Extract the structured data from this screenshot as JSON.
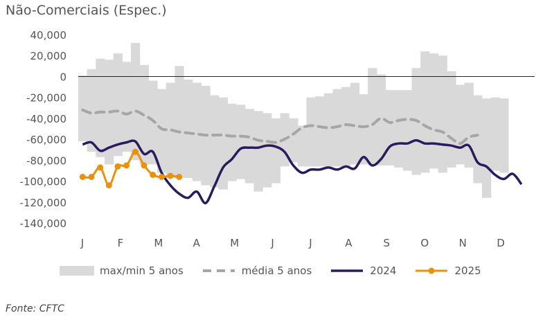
{
  "chart_data": {
    "type": "line",
    "title": "Não-Comerciais (Espec.)",
    "source": "Fonte: CFTC",
    "ylim": [
      -140000,
      40000
    ],
    "y_ticks": [
      "40,000",
      "20,000",
      "0",
      "-20,000",
      "-40,000",
      "-60,000",
      "-80,000",
      "-100,000",
      "-120,000",
      "-140,000"
    ],
    "x_ticks": [
      "J",
      "F",
      "M",
      "A",
      "M",
      "J",
      "J",
      "A",
      "S",
      "O",
      "N",
      "D"
    ],
    "week_count": 52,
    "legend": {
      "range": "max/min 5 anos",
      "avg": "média 5 anos",
      "y2024": "2024",
      "y2025": "2025"
    },
    "colors": {
      "range": "#d9d9d9",
      "avg": "#a6a6a6",
      "y2024": "#2a1a5e",
      "y2025": "#e8920e"
    },
    "range_max": [
      1000,
      7000,
      17000,
      16000,
      22000,
      14000,
      32000,
      11000,
      -4000,
      -12000,
      -6000,
      10000,
      -3000,
      -6000,
      -9000,
      -18000,
      -20000,
      -26000,
      -27000,
      -31000,
      -33000,
      -35000,
      -40000,
      -35000,
      -40000,
      -47000,
      -20000,
      -19000,
      -16000,
      -12000,
      -10000,
      -6000,
      -17000,
      8000,
      2000,
      -13000,
      -13000,
      -13000,
      8000,
      24000,
      22000,
      20000,
      5000,
      -8000,
      -6000,
      -18000,
      -21000,
      -20000,
      -21000
    ],
    "range_min": [
      -62000,
      -72000,
      -77000,
      -84000,
      -76000,
      -72000,
      -80000,
      -84000,
      -84000,
      -92000,
      -97000,
      -97000,
      -97000,
      -100000,
      -104000,
      -106000,
      -108000,
      -100000,
      -98000,
      -102000,
      -110000,
      -106000,
      -102000,
      -86000,
      -82000,
      -86000,
      -86000,
      -86000,
      -86000,
      -86000,
      -86000,
      -84000,
      -84000,
      -85000,
      -85000,
      -85000,
      -87000,
      -90000,
      -94000,
      -92000,
      -88000,
      -92000,
      -87000,
      -84000,
      -87000,
      -102000,
      -116000,
      -90000,
      -92000
    ],
    "avg_5y": [
      -32000,
      -35000,
      -34000,
      -34000,
      -33000,
      -36000,
      -33000,
      -37000,
      -42000,
      -50000,
      -51000,
      -53000,
      -54000,
      -55000,
      -56000,
      -56000,
      -56000,
      -57000,
      -57000,
      -58000,
      -61000,
      -62000,
      -63000,
      -60000,
      -55000,
      -49000,
      -47000,
      -48000,
      -49000,
      -48000,
      -46000,
      -47000,
      -48000,
      -46000,
      -40000,
      -44000,
      -42000,
      -41000,
      -42000,
      -47000,
      -51000,
      -53000,
      -59000,
      -64000,
      -58000,
      -56000
    ],
    "y2024": [
      -65000,
      -63000,
      -71000,
      -68000,
      -65000,
      -63000,
      -62000,
      -74000,
      -72000,
      -92000,
      -104000,
      -112000,
      -116000,
      -110000,
      -121000,
      -105000,
      -87000,
      -79000,
      -69000,
      -68000,
      -68000,
      -66000,
      -67000,
      -72000,
      -85000,
      -92000,
      -89000,
      -89000,
      -87000,
      -89000,
      -86000,
      -88000,
      -77000,
      -85000,
      -79000,
      -67000,
      -64000,
      -64000,
      -61000,
      -64000,
      -64000,
      -65000,
      -66000,
      -68000,
      -66000,
      -82000,
      -86000,
      -94000,
      -98000,
      -93000,
      -103000
    ],
    "y2025": [
      -96000,
      -96000,
      -87000,
      -104000,
      -86000,
      -85000,
      -72000,
      -85000,
      -94000,
      -96000,
      -95000,
      -96000
    ]
  }
}
